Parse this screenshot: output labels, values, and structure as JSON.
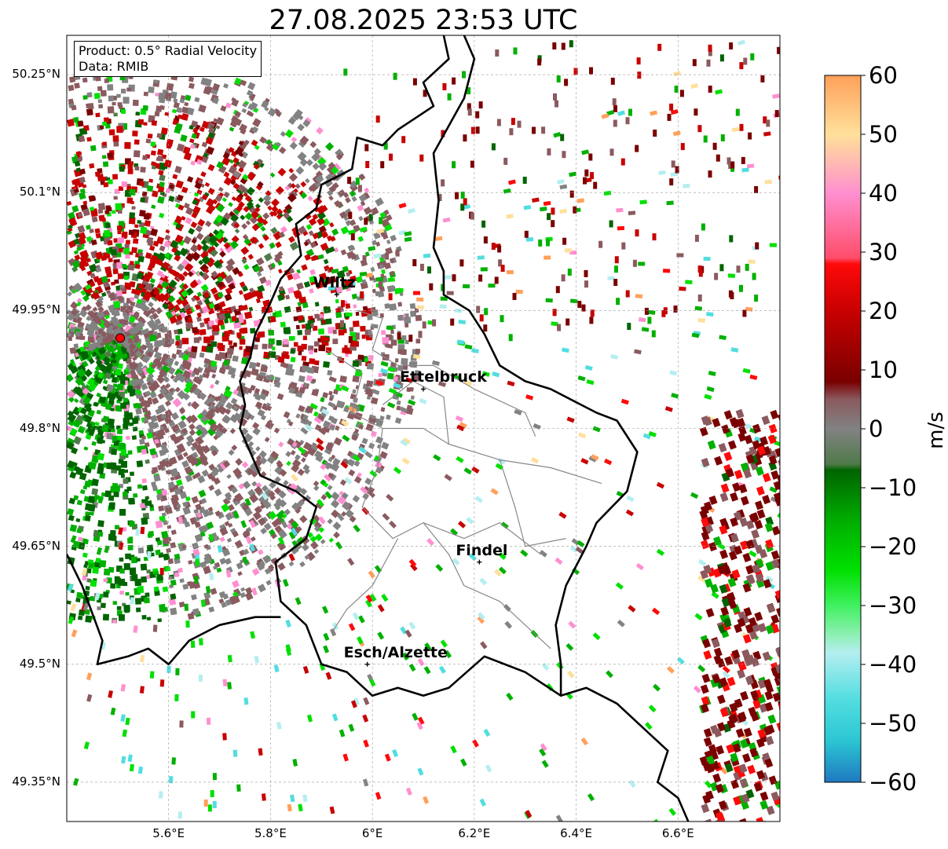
{
  "title": "27.08.2025 23:53 UTC",
  "product_label": "Product: 0.5° Radial Velocity",
  "data_label": "Data: RMIB",
  "map": {
    "lon_range": [
      5.4,
      6.8
    ],
    "lat_range": [
      49.3,
      50.3
    ],
    "lat_ticks": [
      {
        "value": 50.25,
        "label": "50.25°N"
      },
      {
        "value": 50.1,
        "label": "50.1°N"
      },
      {
        "value": 49.95,
        "label": "49.95°N"
      },
      {
        "value": 49.8,
        "label": "49.8°N"
      },
      {
        "value": 49.65,
        "label": "49.65°N"
      },
      {
        "value": 49.5,
        "label": "49.5°N"
      },
      {
        "value": 49.35,
        "label": "49.35°N"
      }
    ],
    "lon_ticks": [
      {
        "value": 5.6,
        "label": "5.6°E"
      },
      {
        "value": 5.8,
        "label": "5.8°E"
      },
      {
        "value": 6.0,
        "label": "6°E"
      },
      {
        "value": 6.2,
        "label": "6.2°E"
      },
      {
        "value": 6.4,
        "label": "6.4°E"
      },
      {
        "value": 6.6,
        "label": "6.6°E"
      }
    ],
    "radar_site": {
      "lon": 5.505,
      "lat": 49.915
    },
    "cities": [
      {
        "name": "Wiltz",
        "lon": 5.93,
        "lat": 49.97
      },
      {
        "name": "Ettelbruck",
        "lon": 6.1,
        "lat": 49.85
      },
      {
        "name": "Findel",
        "lon": 6.21,
        "lat": 49.63
      },
      {
        "name": "Esch/Alzette",
        "lon": 5.99,
        "lat": 49.5
      }
    ]
  },
  "colorbar": {
    "min": -60,
    "max": 60,
    "label": "m/s",
    "ticks": [
      60,
      50,
      40,
      30,
      20,
      10,
      0,
      -10,
      -20,
      -30,
      -40,
      -50,
      -60
    ],
    "tick_labels": [
      "60",
      "50",
      "40",
      "30",
      "20",
      "10",
      "0",
      "−10",
      "−20",
      "−30",
      "−40",
      "−50",
      "−60"
    ],
    "stops": [
      {
        "v": -60,
        "c": "#1f78c0"
      },
      {
        "v": -53,
        "c": "#2bc6d3"
      },
      {
        "v": -46,
        "c": "#52dde0"
      },
      {
        "v": -38,
        "c": "#b4eef0"
      },
      {
        "v": -35,
        "c": "#8ef0b4"
      },
      {
        "v": -30,
        "c": "#40f060"
      },
      {
        "v": -24,
        "c": "#00e000"
      },
      {
        "v": -16,
        "c": "#00b000"
      },
      {
        "v": -7,
        "c": "#006400"
      },
      {
        "v": -6,
        "c": "#4f7a4a"
      },
      {
        "v": 0,
        "c": "#828282"
      },
      {
        "v": 5,
        "c": "#8a5a5f"
      },
      {
        "v": 8,
        "c": "#7a0000"
      },
      {
        "v": 20,
        "c": "#c80000"
      },
      {
        "v": 28,
        "c": "#ff0a0a"
      },
      {
        "v": 29,
        "c": "#ff4d6a"
      },
      {
        "v": 40,
        "c": "#ff8fd0"
      },
      {
        "v": 44,
        "c": "#ffb0b8"
      },
      {
        "v": 50,
        "c": "#ffe09a"
      },
      {
        "v": 60,
        "c": "#ffa05a"
      }
    ]
  }
}
